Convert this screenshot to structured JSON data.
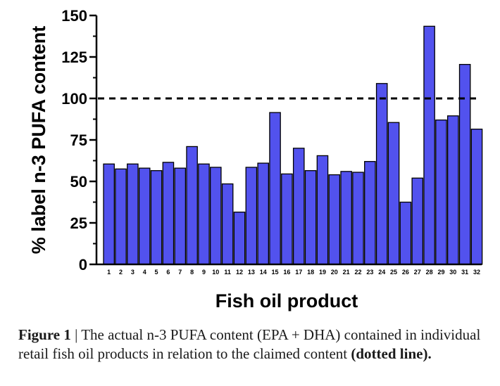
{
  "chart_data": {
    "type": "bar",
    "categories": [
      "1",
      "2",
      "3",
      "4",
      "5",
      "6",
      "7",
      "8",
      "9",
      "10",
      "11",
      "12",
      "13",
      "14",
      "15",
      "16",
      "17",
      "18",
      "19",
      "20",
      "21",
      "22",
      "23",
      "24",
      "25",
      "26",
      "27",
      "28",
      "29",
      "30",
      "31",
      "32"
    ],
    "values": [
      60.5,
      57.5,
      60.5,
      58,
      56.5,
      61.5,
      58,
      71,
      60.5,
      58.5,
      48.5,
      31.5,
      58.5,
      61,
      91.5,
      54.5,
      70,
      56.5,
      65.5,
      54,
      56,
      55.5,
      62,
      109,
      85.5,
      37.5,
      52,
      143.5,
      87,
      89.5,
      120.5,
      81.5
    ],
    "xlabel": "Fish oil product",
    "ylabel": "% label n-3 PUFA content",
    "ylim": [
      0,
      150
    ],
    "yticks": [
      "0",
      "25",
      "50",
      "75",
      "100",
      "125",
      "150"
    ],
    "reference_line": {
      "value": 100,
      "style": "dashed"
    },
    "colors": {
      "bar_fill": "#5252ee",
      "bar_stroke": "#000000",
      "reference": "#000000"
    }
  },
  "caption": {
    "label": "Figure 1",
    "separator": " | ",
    "text": "The actual n-3 PUFA content (EPA + DHA) contained in individual retail fish oil products in relation to the claimed content ",
    "emphasis": "(dotted line)."
  }
}
